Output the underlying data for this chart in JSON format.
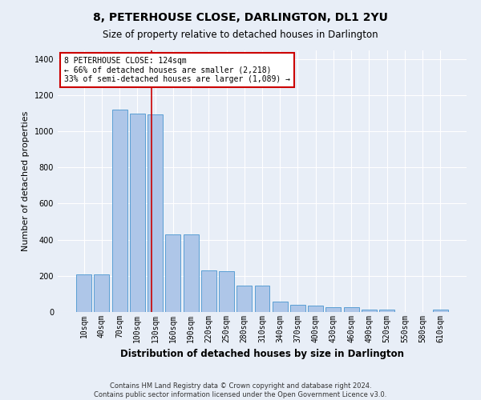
{
  "title": "8, PETERHOUSE CLOSE, DARLINGTON, DL1 2YU",
  "subtitle": "Size of property relative to detached houses in Darlington",
  "xlabel": "Distribution of detached houses by size in Darlington",
  "ylabel": "Number of detached properties",
  "footer_line1": "Contains HM Land Registry data © Crown copyright and database right 2024.",
  "footer_line2": "Contains public sector information licensed under the Open Government Licence v3.0.",
  "bar_labels": [
    "10sqm",
    "40sqm",
    "70sqm",
    "100sqm",
    "130sqm",
    "160sqm",
    "190sqm",
    "220sqm",
    "250sqm",
    "280sqm",
    "310sqm",
    "340sqm",
    "370sqm",
    "400sqm",
    "430sqm",
    "460sqm",
    "490sqm",
    "520sqm",
    "550sqm",
    "580sqm",
    "610sqm"
  ],
  "bar_values": [
    210,
    210,
    1120,
    1100,
    1095,
    430,
    428,
    230,
    228,
    148,
    148,
    58,
    38,
    35,
    25,
    25,
    12,
    12,
    0,
    0,
    12
  ],
  "bar_color": "#aec6e8",
  "bar_edge_color": "#5a9fd4",
  "background_color": "#e8eef7",
  "grid_color": "#ffffff",
  "annotation_text": "8 PETERHOUSE CLOSE: 124sqm\n← 66% of detached houses are smaller (2,218)\n33% of semi-detached houses are larger (1,089) →",
  "annotation_box_color": "#ffffff",
  "annotation_box_edge_color": "#cc0000",
  "vline_color": "#cc0000",
  "ylim": [
    0,
    1450
  ],
  "title_fontsize": 10,
  "subtitle_fontsize": 8.5,
  "xlabel_fontsize": 8.5,
  "ylabel_fontsize": 8,
  "tick_fontsize": 7,
  "annotation_fontsize": 7,
  "footer_fontsize": 6,
  "figsize": [
    6.0,
    5.0
  ],
  "dpi": 100
}
